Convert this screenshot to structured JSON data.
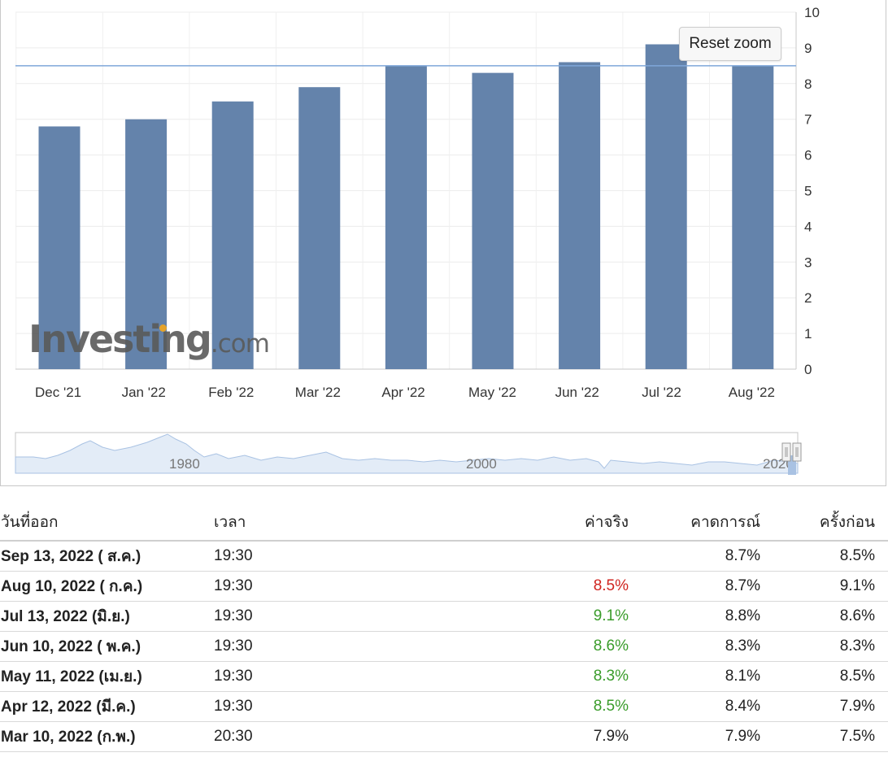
{
  "chart_data": {
    "type": "bar",
    "categories": [
      "Dec '21",
      "Jan '22",
      "Feb '22",
      "Mar '22",
      "Apr '22",
      "May '22",
      "Jun '22",
      "Jul '22",
      "Aug '22"
    ],
    "values": [
      6.8,
      7.0,
      7.5,
      7.9,
      8.5,
      8.3,
      8.6,
      9.1,
      8.5
    ],
    "y_ticks": [
      "0",
      "1",
      "2",
      "3",
      "4",
      "5",
      "6",
      "7",
      "8",
      "9",
      "10"
    ],
    "ylim": [
      0,
      10
    ],
    "reference_line": 8.5,
    "axis_position": "right",
    "grid": true,
    "bar_color": "#6483ab",
    "line_color": "#7fa7d9",
    "navigator_labels": [
      "1980",
      "2000",
      "2020"
    ]
  },
  "ui": {
    "reset_zoom": "Reset zoom",
    "watermark_main": "Investing",
    "watermark_suffix": ".com"
  },
  "table": {
    "headers": {
      "date": "วันที่ออก",
      "time": "เวลา",
      "actual": "ค่าจริง",
      "forecast": "คาดการณ์",
      "previous": "ครั้งก่อน"
    },
    "rows": [
      {
        "date": "Sep 13, 2022 ( ส.ค.)",
        "time": "19:30",
        "actual": "",
        "actual_status": "neutral",
        "forecast": "8.7%",
        "previous": "8.5%"
      },
      {
        "date": "Aug 10, 2022 ( ก.ค.)",
        "time": "19:30",
        "actual": "8.5%",
        "actual_status": "red",
        "forecast": "8.7%",
        "previous": "9.1%"
      },
      {
        "date": "Jul 13, 2022 (มิ.ย.)",
        "time": "19:30",
        "actual": "9.1%",
        "actual_status": "green",
        "forecast": "8.8%",
        "previous": "8.6%"
      },
      {
        "date": "Jun 10, 2022 ( พ.ค.)",
        "time": "19:30",
        "actual": "8.6%",
        "actual_status": "green",
        "forecast": "8.3%",
        "previous": "8.3%"
      },
      {
        "date": "May 11, 2022 (เม.ย.)",
        "time": "19:30",
        "actual": "8.3%",
        "actual_status": "green",
        "forecast": "8.1%",
        "previous": "8.5%"
      },
      {
        "date": "Apr 12, 2022 (มี.ค.)",
        "time": "19:30",
        "actual": "8.5%",
        "actual_status": "green",
        "forecast": "8.4%",
        "previous": "7.9%"
      },
      {
        "date": "Mar 10, 2022 (ก.พ.)",
        "time": "20:30",
        "actual": "7.9%",
        "actual_status": "neutral",
        "forecast": "7.9%",
        "previous": "7.5%"
      }
    ]
  }
}
